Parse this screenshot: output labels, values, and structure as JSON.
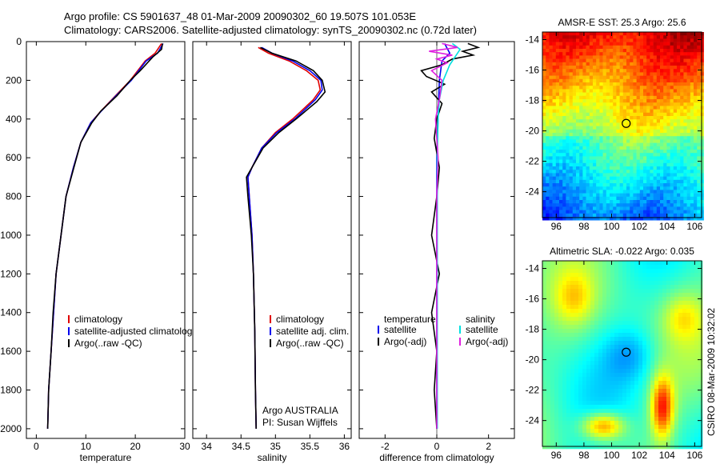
{
  "figure": {
    "title_line1": "Argo profile: CS 5901637_48 01-Mar-2009 20090302_60 19.507S 101.053E",
    "title_line2": "Climatology: CARS2006. Satellite-adjusted climatology: synTS_20090302.nc (0.72d later)",
    "credit": "CSIRO 08-Mar-2009 10:32:02",
    "argo_center": "Argo AUSTRALIA",
    "pi": "PI: Susan Wijffels"
  },
  "colors": {
    "climatology": "#e00000",
    "satellite": "#0000ee",
    "argo": "#000000",
    "sal_sat": "#00e0e0",
    "sal_argo": "#e020e0"
  },
  "chart_data": [
    {
      "type": "line",
      "id": "temperature",
      "xlabel": "temperature",
      "ylabel": "",
      "xlim": [
        -2,
        30
      ],
      "ylim": [
        2050,
        0
      ],
      "xticks": [
        0,
        10,
        20,
        30
      ],
      "yticks": [
        0,
        200,
        400,
        600,
        800,
        1000,
        1200,
        1400,
        1600,
        1800,
        2000
      ],
      "legend": [
        "climatology",
        "satellite-adjusted climatology",
        "Argo(..raw -QC)"
      ],
      "series": [
        {
          "name": "climatology",
          "color": "climatology",
          "x": [
            25.3,
            24.0,
            22.0,
            19.0,
            16.0,
            13.0,
            11.0,
            9.0,
            7.5,
            6.0,
            5.0,
            4.0,
            3.5,
            3.0,
            2.5,
            2.3
          ],
          "y": [
            10,
            60,
            100,
            200,
            280,
            360,
            420,
            520,
            650,
            800,
            1000,
            1200,
            1400,
            1600,
            1800,
            2000
          ]
        },
        {
          "name": "satellite-adjusted climatology",
          "color": "satellite",
          "x": [
            25.6,
            24.5,
            22.2,
            19.2,
            16.1,
            13.1,
            11.0,
            9.0,
            7.5,
            6.0,
            5.0,
            4.0,
            3.5,
            3.0,
            2.5,
            2.3
          ],
          "y": [
            10,
            60,
            100,
            200,
            280,
            360,
            420,
            520,
            650,
            800,
            1000,
            1200,
            1400,
            1600,
            1800,
            2000
          ]
        },
        {
          "name": "Argo(..raw -QC)",
          "color": "argo",
          "x": [
            25.5,
            25.3,
            23.5,
            21.0,
            19.0,
            16.3,
            13.0,
            11.2,
            9.0,
            7.6,
            6.0,
            5.0,
            4.0,
            3.4,
            3.0,
            2.5,
            2.3
          ],
          "y": [
            10,
            40,
            80,
            150,
            200,
            280,
            360,
            420,
            520,
            650,
            800,
            1000,
            1200,
            1400,
            1600,
            1800,
            2000
          ]
        }
      ]
    },
    {
      "type": "line",
      "id": "salinity",
      "xlabel": "salinity",
      "ylabel": "",
      "xlim": [
        33.8,
        36.1
      ],
      "ylim": [
        2050,
        0
      ],
      "xticks": [
        34,
        34.5,
        35,
        35.5,
        36
      ],
      "yticks": [
        0,
        200,
        400,
        600,
        800,
        1000,
        1200,
        1400,
        1600,
        1800,
        2000
      ],
      "legend": [
        "climatology",
        "satellite adj. clim.",
        "Argo(..raw -QC)"
      ],
      "series": [
        {
          "name": "climatology",
          "color": "climatology",
          "x": [
            34.75,
            34.9,
            35.2,
            35.45,
            35.62,
            35.65,
            35.55,
            35.25,
            35.0,
            34.8,
            34.66,
            34.6,
            34.62,
            34.66,
            34.68,
            34.7,
            34.71,
            34.72
          ],
          "y": [
            30,
            60,
            100,
            150,
            200,
            250,
            300,
            400,
            470,
            550,
            650,
            700,
            800,
            1000,
            1200,
            1500,
            1800,
            2000
          ]
        },
        {
          "name": "satellite adj. clim.",
          "color": "satellite",
          "x": [
            34.8,
            34.95,
            35.25,
            35.5,
            35.66,
            35.68,
            35.58,
            35.28,
            35.02,
            34.8,
            34.66,
            34.6,
            34.62,
            34.66,
            34.68,
            34.7,
            34.71,
            34.72
          ],
          "y": [
            30,
            60,
            100,
            150,
            200,
            250,
            300,
            400,
            470,
            550,
            650,
            700,
            800,
            1000,
            1200,
            1500,
            1800,
            2000
          ]
        },
        {
          "name": "Argo(..raw -QC)",
          "color": "argo",
          "x": [
            34.78,
            34.95,
            35.3,
            35.55,
            35.68,
            35.72,
            35.6,
            35.3,
            35.05,
            34.82,
            34.66,
            34.58,
            34.6,
            34.65,
            34.68,
            34.7,
            34.71,
            34.72
          ],
          "y": [
            30,
            60,
            100,
            150,
            200,
            260,
            310,
            400,
            470,
            550,
            650,
            700,
            800,
            1000,
            1200,
            1500,
            1800,
            2000
          ]
        }
      ]
    },
    {
      "type": "line",
      "id": "difference",
      "xlabel": "difference from climatology",
      "ylabel": "",
      "xlim": [
        -3,
        3
      ],
      "ylim": [
        2050,
        0
      ],
      "xticks": [
        -2,
        0,
        2
      ],
      "yticks": [
        0,
        200,
        400,
        600,
        800,
        1000,
        1200,
        1400,
        1600,
        1800,
        2000
      ],
      "legend_titles": [
        "temperature",
        "salinity"
      ],
      "legend": [
        "satellite",
        "Argo(-adj)",
        "satellite",
        "Argo(-adj)"
      ],
      "series": [
        {
          "name": "temperature satellite",
          "color": "satellite",
          "x": [
            0.3,
            0.5,
            0.2,
            0.1,
            0.05,
            0.0,
            0.0,
            0.0,
            0.0
          ],
          "y": [
            10,
            60,
            100,
            200,
            400,
            600,
            1000,
            1500,
            2000
          ]
        },
        {
          "name": "temperature Argo(-adj)",
          "color": "argo",
          "x": [
            1.2,
            1.6,
            1.0,
            1.4,
            0.6,
            0.2,
            -0.6,
            -0.4,
            0.3,
            -0.2,
            0.2,
            0.0,
            -0.1,
            0.1,
            0.0,
            -0.2,
            0.1,
            -0.2,
            0.0,
            -0.1,
            0.0
          ],
          "y": [
            10,
            30,
            50,
            70,
            90,
            120,
            150,
            180,
            220,
            260,
            320,
            400,
            500,
            650,
            800,
            1000,
            1200,
            1400,
            1600,
            1800,
            2000
          ]
        },
        {
          "name": "salinity satellite",
          "color": "sal_sat",
          "x": [
            0.6,
            0.9,
            0.7,
            0.5,
            0.25,
            0.1,
            0.05,
            0.02,
            0.02,
            0.02
          ],
          "y": [
            10,
            40,
            80,
            120,
            200,
            300,
            400,
            600,
            1000,
            2000
          ]
        },
        {
          "name": "salinity Argo(-adj)",
          "color": "sal_argo",
          "x": [
            0.2,
            0.8,
            -0.3,
            0.6,
            0.0,
            0.4,
            -0.2,
            0.2,
            0.1,
            -0.05,
            0.05,
            0.0,
            0.0,
            0.0
          ],
          "y": [
            10,
            30,
            50,
            70,
            90,
            110,
            150,
            200,
            300,
            400,
            600,
            800,
            1200,
            2000
          ]
        }
      ]
    },
    {
      "type": "heatmap",
      "id": "sst_map",
      "title": "AMSR-E SST: 25.3 Argo: 25.6",
      "xlim": [
        95,
        106.5
      ],
      "ylim": [
        -25.7,
        -13.5
      ],
      "xticks": [
        96,
        98,
        100,
        102,
        104,
        106
      ],
      "yticks": [
        -14,
        -16,
        -18,
        -20,
        -22,
        -24
      ],
      "marker": {
        "lon": 101.053,
        "lat": -19.507
      }
    },
    {
      "type": "heatmap",
      "id": "sla_map",
      "title": "Altimetric SLA: -0.022 Argo: 0.035",
      "xlim": [
        95,
        106.5
      ],
      "ylim": [
        -25.7,
        -13.5
      ],
      "xticks": [
        96,
        98,
        100,
        102,
        104,
        106
      ],
      "yticks": [
        -14,
        -16,
        -18,
        -20,
        -22,
        -24
      ],
      "marker": {
        "lon": 101.053,
        "lat": -19.507
      }
    }
  ]
}
